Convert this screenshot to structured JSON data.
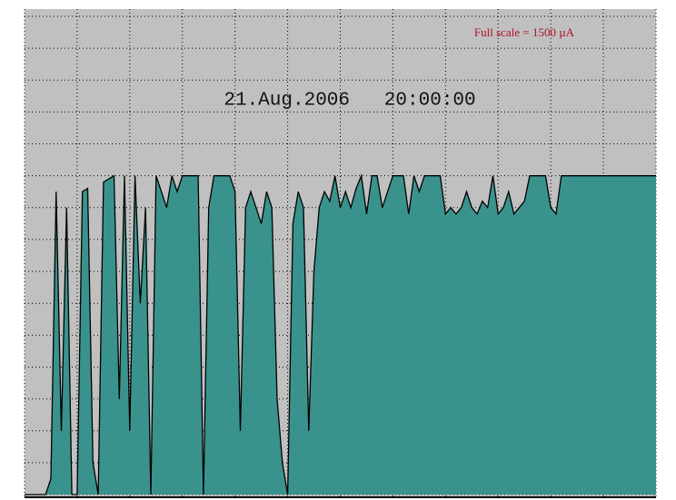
{
  "chart_data": {
    "type": "area",
    "title": "21.Aug.2006   20:00:00",
    "annotation": "Full scale = 1500 µA",
    "x": [
      0,
      1,
      2,
      3,
      4,
      5,
      6,
      7,
      8,
      9,
      10,
      11,
      12,
      13,
      14,
      15,
      16,
      17,
      18,
      19,
      20,
      21,
      22,
      23,
      24,
      25,
      26,
      27,
      28,
      29,
      30,
      31,
      32,
      33,
      34,
      35,
      36,
      37,
      38,
      39,
      40,
      41,
      42,
      43,
      44,
      45,
      46,
      47,
      48,
      49,
      50,
      51,
      52,
      53,
      54,
      55,
      56,
      57,
      58,
      59,
      60,
      61,
      62,
      63,
      64,
      65,
      66,
      67,
      68,
      69,
      70,
      71,
      72,
      73,
      74,
      75,
      76,
      77,
      78,
      79,
      80,
      81,
      82,
      83,
      84,
      85,
      86,
      87,
      88,
      89,
      90,
      91,
      92,
      93,
      94,
      95,
      96,
      97,
      98,
      99,
      100,
      101,
      102,
      103,
      104,
      105,
      106,
      107,
      108,
      109,
      110,
      111,
      112,
      113,
      114,
      115,
      116,
      117,
      118,
      119,
      120
    ],
    "values": [
      0,
      0,
      0,
      0,
      0,
      50,
      950,
      200,
      900,
      0,
      0,
      950,
      960,
      100,
      0,
      980,
      990,
      1000,
      300,
      1000,
      200,
      1000,
      600,
      900,
      0,
      1000,
      950,
      900,
      1000,
      950,
      1000,
      1000,
      1000,
      1000,
      0,
      900,
      1000,
      1000,
      1000,
      1000,
      950,
      200,
      900,
      950,
      900,
      850,
      950,
      900,
      300,
      100,
      0,
      850,
      950,
      900,
      200,
      700,
      900,
      950,
      920,
      1000,
      900,
      950,
      900,
      960,
      1000,
      880,
      1000,
      1000,
      900,
      950,
      1000,
      1000,
      1000,
      880,
      1000,
      950,
      1000,
      1000,
      1000,
      1000,
      880,
      900,
      880,
      900,
      950,
      900,
      880,
      920,
      900,
      1000,
      880,
      900,
      950,
      880,
      900,
      920,
      1000,
      1000,
      1000,
      1000,
      900,
      880,
      1000,
      1000,
      1000,
      1000,
      1000,
      1000,
      1000,
      1000,
      1000,
      1000,
      1000,
      1000,
      1000,
      1000,
      1000,
      1000,
      1000,
      1000,
      1000
    ],
    "color": "#3a928d",
    "line_color": "#000000",
    "background": "#c0c0c0",
    "xlim": [
      0,
      120
    ],
    "xticks": [
      0,
      10,
      20,
      30,
      40,
      50,
      60,
      70,
      80,
      90,
      100,
      110,
      120
    ],
    "ylim": [
      0,
      1500
    ],
    "yticks": [
      0,
      100,
      200,
      300,
      400,
      500,
      600,
      700,
      800,
      900,
      1000,
      1100,
      1200,
      1300,
      1400,
      1500
    ],
    "grid": true
  }
}
